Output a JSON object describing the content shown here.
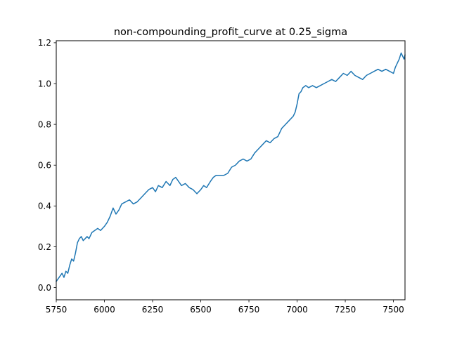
{
  "chart_data": {
    "type": "line",
    "title": "non-compounding_profit_curve at 0.25_sigma",
    "xlabel": "",
    "ylabel": "",
    "xlim": [
      5750,
      7560
    ],
    "ylim": [
      -0.06,
      1.21
    ],
    "grid": false,
    "legend": "none",
    "color": "#1f77b4",
    "xticks": [
      5750,
      6000,
      6250,
      6500,
      6750,
      7000,
      7250,
      7500
    ],
    "xtick_labels": [
      "5750",
      "6000",
      "6250",
      "6500",
      "6750",
      "7000",
      "7250",
      "7500"
    ],
    "yticks": [
      0.0,
      0.2,
      0.4,
      0.6,
      0.8,
      1.0,
      1.2
    ],
    "ytick_labels": [
      "0.0",
      "0.2",
      "0.4",
      "0.6",
      "0.8",
      "1.0",
      "1.2"
    ],
    "series": [
      {
        "x": [
          5750,
          5765,
          5780,
          5790,
          5800,
          5810,
          5820,
          5830,
          5840,
          5850,
          5860,
          5870,
          5880,
          5890,
          5900,
          5910,
          5920,
          5935,
          5950,
          5965,
          5980,
          6000,
          6015,
          6030,
          6045,
          6060,
          6075,
          6090,
          6110,
          6130,
          6150,
          6170,
          6190,
          6210,
          6230,
          6250,
          6265,
          6280,
          6300,
          6320,
          6340,
          6355,
          6370,
          6385,
          6400,
          6420,
          6440,
          6460,
          6480,
          6500,
          6515,
          6530,
          6550,
          6565,
          6580,
          6600,
          6620,
          6640,
          6660,
          6680,
          6700,
          6720,
          6740,
          6760,
          6780,
          6800,
          6820,
          6840,
          6860,
          6880,
          6900,
          6920,
          6940,
          6960,
          6980,
          6990,
          7000,
          7010,
          7020,
          7030,
          7045,
          7060,
          7080,
          7100,
          7120,
          7140,
          7160,
          7180,
          7200,
          7220,
          7240,
          7260,
          7280,
          7300,
          7320,
          7340,
          7360,
          7380,
          7400,
          7420,
          7440,
          7460,
          7480,
          7500,
          7510,
          7520,
          7530,
          7540,
          7555,
          7560
        ],
        "y": [
          0.03,
          0.05,
          0.07,
          0.05,
          0.08,
          0.07,
          0.11,
          0.14,
          0.13,
          0.17,
          0.22,
          0.24,
          0.25,
          0.23,
          0.24,
          0.25,
          0.24,
          0.27,
          0.28,
          0.29,
          0.28,
          0.3,
          0.32,
          0.35,
          0.39,
          0.36,
          0.38,
          0.41,
          0.42,
          0.43,
          0.41,
          0.42,
          0.44,
          0.46,
          0.48,
          0.49,
          0.47,
          0.5,
          0.49,
          0.52,
          0.5,
          0.53,
          0.54,
          0.52,
          0.5,
          0.51,
          0.49,
          0.48,
          0.46,
          0.48,
          0.5,
          0.49,
          0.52,
          0.54,
          0.55,
          0.55,
          0.55,
          0.56,
          0.59,
          0.6,
          0.62,
          0.63,
          0.62,
          0.63,
          0.66,
          0.68,
          0.7,
          0.72,
          0.71,
          0.73,
          0.74,
          0.78,
          0.8,
          0.82,
          0.84,
          0.86,
          0.9,
          0.95,
          0.96,
          0.98,
          0.99,
          0.98,
          0.99,
          0.98,
          0.99,
          1.0,
          1.01,
          1.02,
          1.01,
          1.03,
          1.05,
          1.04,
          1.06,
          1.04,
          1.03,
          1.02,
          1.04,
          1.05,
          1.06,
          1.07,
          1.06,
          1.07,
          1.06,
          1.05,
          1.08,
          1.1,
          1.12,
          1.15,
          1.12,
          1.14
        ]
      }
    ]
  }
}
